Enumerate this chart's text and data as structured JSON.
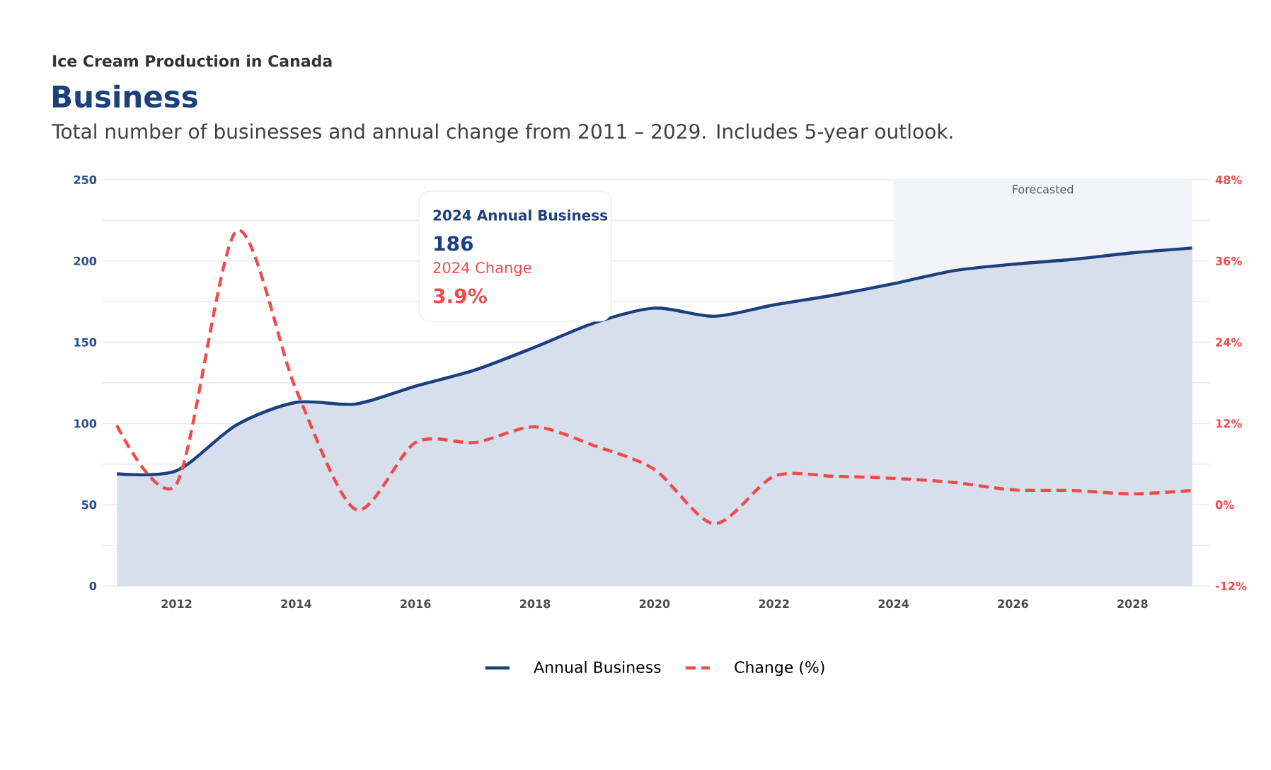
{
  "chart_data": {
    "type": "line",
    "title": "Business",
    "subtitle": "Total number of businesses and annual change from 2011 – 2029. Includes 5-year outlook.",
    "annotations": [
      "Ice Cream Production in Canada",
      "2024 Annual Business",
      "186",
      "2024 Change",
      "3.9%"
    ],
    "x": [
      2011,
      2012,
      2013,
      2014,
      2015,
      2016,
      2017,
      2018,
      2019,
      2020,
      2021,
      2022,
      2023,
      2024,
      2025,
      2026,
      2027,
      2028,
      2029
    ],
    "series": [
      {
        "name": "Annual Business",
        "type": "area",
        "color": "#1c3f7e",
        "line_style": "solid",
        "values": [
          69,
          71,
          99,
          113,
          112,
          123,
          133,
          147,
          162,
          171,
          166,
          173,
          179,
          186,
          194,
          198,
          201,
          205,
          208
        ]
      },
      {
        "name": "Change (%)",
        "axis": "y2",
        "color": "#ef4b4b",
        "line_style": "dashed",
        "values": [
          11.7,
          3.1,
          40.4,
          17,
          -0.7,
          9.2,
          9.2,
          11.5,
          8.7,
          5.2,
          -2.8,
          4.2,
          4.2,
          3.9,
          3.3,
          2.2,
          2.1,
          1.6,
          2.1
        ]
      }
    ],
    "xlim": [
      2010.75,
      2029.3
    ],
    "xticks": [
      2012,
      2014,
      2016,
      2018,
      2020,
      2022,
      2024,
      2026,
      2028
    ],
    "ylim": [
      0,
      250
    ],
    "yticks": [
      0,
      {
        "value": 25,
        "label": null
      },
      50,
      {
        "value": 75,
        "label": null
      },
      100,
      {
        "value": 125,
        "label": null
      },
      150,
      {
        "value": 175,
        "label": null
      },
      200,
      {
        "value": 225,
        "label": null
      },
      250
    ],
    "y2lim": [
      -12,
      48
    ],
    "y2ticks": [
      {
        "value": -12,
        "label": "-12%"
      },
      {
        "value": 0,
        "label": "0%"
      },
      {
        "value": 12,
        "label": "12%"
      },
      {
        "value": 24,
        "label": "24%"
      },
      {
        "value": 36,
        "label": "36%"
      },
      {
        "value": 48,
        "label": "48%"
      }
    ],
    "bands": [
      {
        "axis": "x",
        "from": 2024,
        "to": 2029,
        "label": "Forecasted",
        "color": "#f3f4f8"
      }
    ],
    "grid": "y",
    "legend": "bottom",
    "marker": "none"
  }
}
